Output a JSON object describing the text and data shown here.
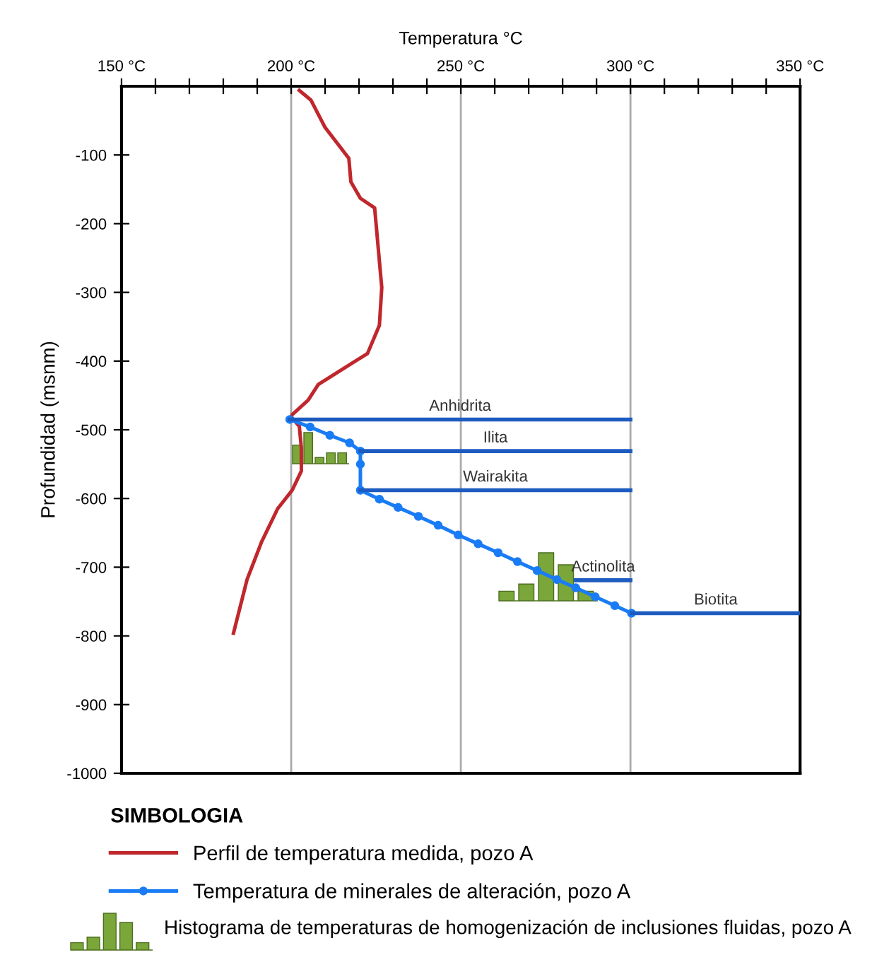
{
  "chart_data": {
    "type": "line",
    "xlabel": "Temperatura °C",
    "ylabel": "Profundidad (msnm)",
    "xlim": [
      150,
      350
    ],
    "xticks": [
      {
        "value": 150,
        "label": "150 °C"
      },
      {
        "value": 160,
        "label": null
      },
      {
        "value": 170,
        "label": null
      },
      {
        "value": 180,
        "label": null
      },
      {
        "value": 190,
        "label": null
      },
      {
        "value": 200,
        "label": "200 °C"
      },
      {
        "value": 210,
        "label": null
      },
      {
        "value": 220,
        "label": null
      },
      {
        "value": 230,
        "label": null
      },
      {
        "value": 240,
        "label": null
      },
      {
        "value": 250,
        "label": "250 °C"
      },
      {
        "value": 260,
        "label": null
      },
      {
        "value": 270,
        "label": null
      },
      {
        "value": 280,
        "label": null
      },
      {
        "value": 290,
        "label": null
      },
      {
        "value": 300,
        "label": "300 °C"
      },
      {
        "value": 310,
        "label": null
      },
      {
        "value": 320,
        "label": null
      },
      {
        "value": 330,
        "label": null
      },
      {
        "value": 340,
        "label": null
      },
      {
        "value": 350,
        "label": "350 °C"
      }
    ],
    "ylim": [
      -1000,
      0
    ],
    "yticks": [
      -1000,
      -900,
      -800,
      -700,
      -600,
      -500,
      -400,
      -300,
      -200,
      -100
    ],
    "grid": "x",
    "legend": "bottom",
    "legend_title": "SIMBOLOGIA",
    "annotations": [
      "Histograma de temperaturas de homogenización de inclusiones fluidas, pozo A"
    ],
    "series": [
      {
        "name": "Perfil de temperatura medida, pozo A",
        "color": "#c0272d",
        "marker": "none",
        "x": [
          202.4,
          205.8,
          210,
          217,
          217.6,
          220.4,
          224.6,
          226.7,
          226,
          222.5,
          217,
          208,
          205,
          200.3,
          200,
          202.4,
          203,
          203,
          200.3,
          196,
          191.3,
          187,
          183
        ],
        "values": [
          -6,
          -20,
          -60,
          -105,
          -139,
          -163,
          -177,
          -293,
          -348,
          -389,
          -406,
          -434,
          -457,
          -478,
          -481,
          -495,
          -526,
          -560,
          -588,
          -615,
          -663,
          -718,
          -796
        ]
      },
      {
        "name": "Temperatura de minerales de alteración, pozo A",
        "color": "#1a7cf5",
        "marker": "circle",
        "x": [
          199.6,
          205.6,
          211.4,
          217.2,
          220.4,
          220.4,
          220.4,
          226,
          231.5,
          237.5,
          243.3,
          249.2,
          255.1,
          261,
          266.7,
          272.5,
          278.3,
          283.9,
          289.6,
          295.4,
          300.3
        ],
        "values": [
          -485,
          -496,
          -508,
          -519,
          -531,
          -550,
          -588,
          -601,
          -613,
          -626,
          -639,
          -653,
          -666,
          -679,
          -692,
          -705,
          -718,
          -730,
          -743,
          -756,
          -767
        ]
      },
      {
        "name": "Anhidrita",
        "color": "#1d5bc0",
        "x": [
          199.6,
          300
        ],
        "values": [
          -485,
          -485
        ]
      },
      {
        "name": "Ilita",
        "color": "#1d5bc0",
        "x": [
          220.4,
          300
        ],
        "values": [
          -531,
          -531
        ]
      },
      {
        "name": "Wairakita",
        "color": "#1d5bc0",
        "x": [
          220.4,
          300
        ],
        "values": [
          -588,
          -588
        ]
      },
      {
        "name": "Actinolita",
        "color": "#1d5bc0",
        "x": [
          283.9,
          300
        ],
        "values": [
          -719,
          -719
        ]
      },
      {
        "name": "Biotita",
        "color": "#1d5bc0",
        "x": [
          300.3,
          350
        ],
        "values": [
          -767,
          -767
        ]
      }
    ]
  }
}
